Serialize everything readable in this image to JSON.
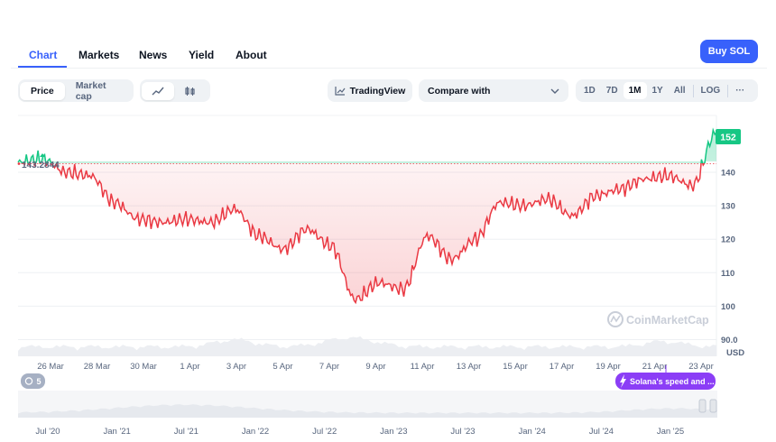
{
  "nav": {
    "tabs": [
      "Chart",
      "Markets",
      "News",
      "Yield",
      "About"
    ],
    "active": "Chart",
    "buy_label": "Buy SOL"
  },
  "toolbar": {
    "type_options": [
      "Price",
      "Market cap"
    ],
    "type_active": "Price",
    "style_icons": [
      "line-chart-icon",
      "candlestick-icon"
    ],
    "tradingview_label": "TradingView",
    "compare_label": "Compare with",
    "ranges": [
      "1D",
      "7D",
      "1M",
      "1Y",
      "All",
      "LOG"
    ],
    "range_active": "1M",
    "more_label": "···"
  },
  "chart": {
    "current_price_label": "152",
    "reference_price_label": "143.2844",
    "currency_label": "USD",
    "watermark": "CoinMarketCap",
    "y_ticks": [
      "140",
      "130",
      "120",
      "110",
      "100",
      "90.0"
    ],
    "x_ticks": [
      "26 Mar",
      "28 Mar",
      "30 Mar",
      "1 Apr",
      "3 Apr",
      "5 Apr",
      "7 Apr",
      "9 Apr",
      "11 Apr",
      "13 Apr",
      "15 Apr",
      "17 Apr",
      "19 Apr",
      "21 Apr",
      "23 Apr"
    ],
    "events_count": "5",
    "news_label": "Solana's speed and ...",
    "nav_ticks": [
      "Jul '20",
      "Jan '21",
      "Jul '21",
      "Jan '22",
      "Jul '22",
      "Jan '23",
      "Jul '23",
      "Jan '24",
      "Jul '24",
      "Jan '25"
    ],
    "colors": {
      "up": "#16c784",
      "down": "#ea3943",
      "accent": "#3861fb",
      "news": "#8b3ef6"
    }
  },
  "chart_data": {
    "type": "line",
    "title": "",
    "xlabel": "",
    "ylabel": "USD",
    "ylim": [
      85,
      157
    ],
    "baseline": 143.2844,
    "x": [
      "25 Mar",
      "26 Mar",
      "27 Mar",
      "28 Mar",
      "29 Mar",
      "30 Mar",
      "31 Mar",
      "1 Apr",
      "2 Apr",
      "3 Apr",
      "4 Apr",
      "5 Apr",
      "6 Apr",
      "7 Apr",
      "8 Apr",
      "9 Apr",
      "10 Apr",
      "11 Apr",
      "12 Apr",
      "13 Apr",
      "14 Apr",
      "15 Apr",
      "16 Apr",
      "17 Apr",
      "18 Apr",
      "19 Apr",
      "20 Apr",
      "21 Apr",
      "22 Apr",
      "23 Apr"
    ],
    "series": [
      {
        "values": [
          143,
          144,
          140,
          139,
          131,
          126,
          125,
          126,
          125,
          129,
          121,
          117,
          123,
          118,
          102,
          107,
          105,
          121,
          114,
          120,
          131,
          130,
          132,
          127,
          133,
          135,
          138,
          139,
          136,
          152
        ]
      }
    ]
  }
}
